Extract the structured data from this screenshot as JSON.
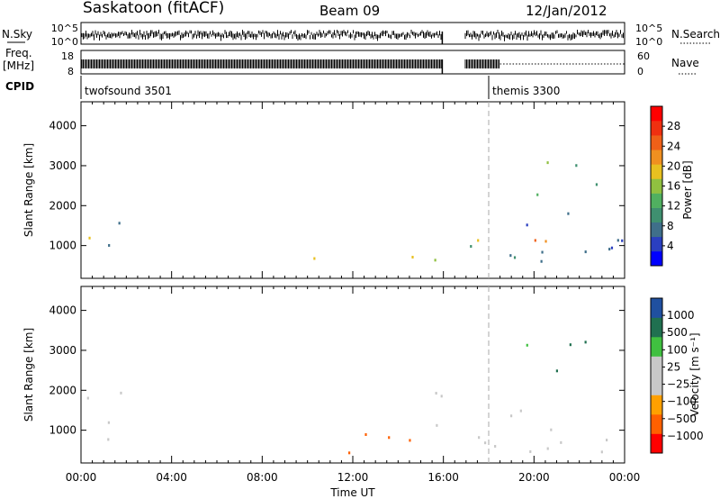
{
  "header": {
    "station": "Saskatoon (fitACF)",
    "beam": "Beam 09",
    "date": "12/Jan/2012"
  },
  "strip_labels": {
    "nsky": "N.Sky",
    "nsky_ticks": [
      "10^5",
      "10^0"
    ],
    "nsearch": "N.Search",
    "nsearch_ticks": [
      "10^5",
      "10^0"
    ],
    "freq_line1": "Freq.",
    "freq_line2": "[MHz]",
    "freq_ticks": [
      "18",
      "8"
    ],
    "nave": "Nave",
    "nave_ticks": [
      "60",
      "0"
    ],
    "cpid": "CPID"
  },
  "cpid_modes": [
    {
      "label": "twofsound 3501",
      "start_hour": 0
    },
    {
      "label": "themis 3300",
      "start_hour": 18
    }
  ],
  "colors": {
    "power": [
      "#0000ff",
      "#2a3fc0",
      "#3f6f8a",
      "#3f9070",
      "#50b060",
      "#90c040",
      "#e8c020",
      "#f09020",
      "#f06018",
      "#f03010",
      "#ff0000"
    ],
    "velocity": [
      "#ff0000",
      "#ff6000",
      "#ffa000",
      "#c8c8c8",
      "#c8c8c8",
      "#40c040",
      "#207050",
      "#2050a0",
      "#1020c0"
    ],
    "ground_scatter": "#c8c8c8"
  },
  "chart_data": [
    {
      "type": "heatmap",
      "title": "",
      "xlabel": "",
      "ylabel": "Slant Range [km]",
      "xlim": [
        0,
        24
      ],
      "ylim": [
        180,
        4600
      ],
      "x_ticks": [
        "00:00",
        "04:00",
        "08:00",
        "12:00",
        "16:00",
        "20:00",
        "00:00"
      ],
      "y_ticks": [
        "1000",
        "2000",
        "3000",
        "4000"
      ],
      "colorbar": {
        "label": "Power [dB]",
        "ticks": [
          "4",
          "8",
          "12",
          "16",
          "20",
          "24",
          "28"
        ],
        "range": [
          0,
          30
        ]
      },
      "scatter_regions": [
        {
          "t0": 0.0,
          "t1": 0.5,
          "r0": 500,
          "r1": 1500,
          "value": 16
        },
        {
          "t0": 0.5,
          "t1": 1.8,
          "r0": 800,
          "r1": 2200,
          "value": 10
        },
        {
          "t0": 10.0,
          "t1": 12.5,
          "r0": 500,
          "r1": 800,
          "value": 20
        },
        {
          "t0": 12.5,
          "t1": 14.5,
          "r0": 450,
          "r1": 650,
          "value": 26
        },
        {
          "t0": 14.5,
          "t1": 16.0,
          "r0": 600,
          "r1": 1500,
          "value": 18
        },
        {
          "t0": 17.0,
          "t1": 24.0,
          "r0": 800,
          "r1": 1200,
          "value": 22
        },
        {
          "t0": 17.0,
          "t1": 24.0,
          "r0": 500,
          "r1": 2000,
          "value": 6
        },
        {
          "t0": 19.5,
          "t1": 23.0,
          "r0": 2200,
          "r1": 3100,
          "value": 12
        }
      ]
    },
    {
      "type": "heatmap",
      "title": "",
      "xlabel": "Time UT",
      "ylabel": "Slant Range [km]",
      "xlim": [
        0,
        24
      ],
      "ylim": [
        180,
        4600
      ],
      "x_ticks": [
        "00:00",
        "04:00",
        "08:00",
        "12:00",
        "16:00",
        "20:00",
        "00:00"
      ],
      "y_ticks": [
        "1000",
        "2000",
        "3000",
        "4000"
      ],
      "colorbar": {
        "label": "Velocity [m s⁻¹]",
        "ticks": [
          "1000",
          "500",
          "100",
          "25",
          "−25",
          "−100",
          "−500",
          "−1000"
        ],
        "range": [
          -1000,
          1000
        ]
      },
      "scatter_regions": [
        {
          "t0": 0.0,
          "t1": 1.8,
          "r0": 300,
          "r1": 2200,
          "value": "ground"
        },
        {
          "t0": 10.0,
          "t1": 16.0,
          "r0": 300,
          "r1": 900,
          "value": -150
        },
        {
          "t0": 14.5,
          "t1": 16.0,
          "r0": 900,
          "r1": 2400,
          "value": "ground"
        },
        {
          "t0": 17.0,
          "t1": 24.0,
          "r0": 400,
          "r1": 1800,
          "value": "ground"
        },
        {
          "t0": 19.5,
          "t1": 23.0,
          "r0": 2200,
          "r1": 3200,
          "value": 80
        }
      ]
    }
  ]
}
